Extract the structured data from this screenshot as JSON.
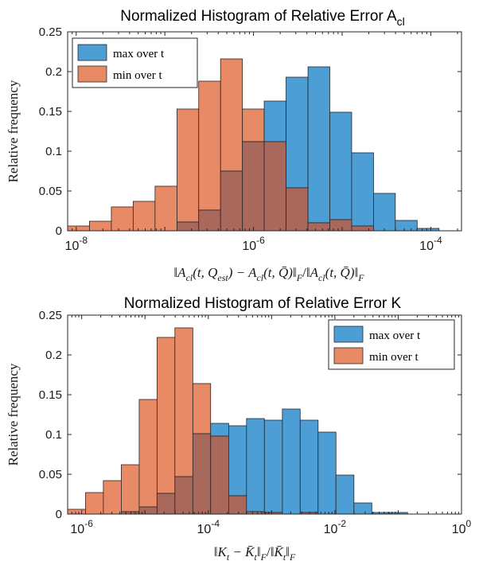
{
  "colors": {
    "max": "#4e9ed6",
    "min": "#e98a66",
    "overlap": "#a8685c",
    "axis": "#262626"
  },
  "chart_data": [
    {
      "type": "bar",
      "title": "Normalized Histogram of Relative Error A",
      "title_subscript": "cl",
      "xlabel": "‖A_cl(t,Q_est) − A_cl(t,Q̄)‖_F / ‖A_cl(t,Q̄)‖_F",
      "ylabel": "Relative frequency",
      "x_scale": "log",
      "xlim": [
        8e-09,
        0.000222
      ],
      "ylim": [
        0,
        0.25
      ],
      "x_ticks": [
        1e-08,
        1e-06,
        0.0001
      ],
      "x_tick_labels": [
        {
          "base": "10",
          "exp": "-8"
        },
        {
          "base": "10",
          "exp": "-6"
        },
        {
          "base": "10",
          "exp": "-4"
        }
      ],
      "y_ticks": [
        0,
        0.05,
        0.1,
        0.15,
        0.2,
        0.25
      ],
      "y_tick_labels": [
        "0",
        "0.05",
        "0.1",
        "0.15",
        "0.2",
        "0.25"
      ],
      "bin_edges": [
        8e-09,
        1.41e-08,
        2.49e-08,
        4.39e-08,
        7.75e-08,
        1.37e-07,
        2.41e-07,
        4.25e-07,
        7.5e-07,
        1.32e-06,
        2.33e-06,
        4.12e-06,
        7.26e-06,
        1.28e-05,
        2.26e-05,
        3.98e-05,
        7.02e-05,
        0.000124,
        0.000219
      ],
      "series": [
        {
          "name": "max over t",
          "color": "#4e9ed6",
          "values": [
            0,
            0,
            0,
            0,
            0,
            0.011,
            0.026,
            0.075,
            0.112,
            0.163,
            0.193,
            0.206,
            0.149,
            0.098,
            0.047,
            0.013,
            0.003
          ]
        },
        {
          "name": "min over t",
          "color": "#e98a66",
          "values": [
            0.006,
            0.012,
            0.03,
            0.037,
            0.056,
            0.153,
            0.188,
            0.216,
            0.153,
            0.112,
            0.054,
            0.01,
            0.014,
            0.006,
            0,
            0,
            0
          ]
        }
      ],
      "legend": "top-left",
      "grid": false
    },
    {
      "type": "bar",
      "title": "Normalized Histogram of Relative Error K",
      "xlabel": "‖K_t − K̄_t‖_F / ‖K̄_t‖_F",
      "ylabel": "Relative frequency",
      "x_scale": "log",
      "xlim": [
        6e-07,
        1
      ],
      "ylim": [
        0,
        0.25
      ],
      "x_ticks": [
        1e-06,
        0.0001,
        0.01,
        1
      ],
      "x_tick_labels": [
        {
          "base": "10",
          "exp": "-6"
        },
        {
          "base": "10",
          "exp": "-4"
        },
        {
          "base": "10",
          "exp": "-2"
        },
        {
          "base": "10",
          "exp": "0"
        }
      ],
      "y_ticks": [
        0,
        0.05,
        0.1,
        0.15,
        0.2,
        0.25
      ],
      "y_tick_labels": [
        "0",
        "0.05",
        "0.1",
        "0.15",
        "0.2",
        "0.25"
      ],
      "bin_edges": [
        6e-07,
        1.15e-06,
        2.2e-06,
        4.22e-06,
        8.1e-06,
        1.55e-05,
        2.97e-05,
        5.7e-05,
        0.000109,
        0.00021,
        0.000402,
        0.00077,
        0.00148,
        0.00283,
        0.00543,
        0.0104,
        0.02,
        0.0383,
        0.0734,
        0.141
      ],
      "series": [
        {
          "name": "max over t",
          "color": "#4e9ed6",
          "values": [
            0,
            0,
            0,
            0.003,
            0.009,
            0.026,
            0.047,
            0.101,
            0.114,
            0.111,
            0.12,
            0.118,
            0.132,
            0.118,
            0.103,
            0.049,
            0.014,
            0.002,
            0.002
          ]
        },
        {
          "name": "min over t",
          "color": "#e98a66",
          "values": [
            0.006,
            0.027,
            0.042,
            0.062,
            0.144,
            0.222,
            0.234,
            0.164,
            0.098,
            0.023,
            0.003,
            0.002,
            0,
            0.002,
            0,
            0,
            0,
            0,
            0
          ]
        }
      ],
      "legend": "top-right",
      "grid": false
    }
  ]
}
